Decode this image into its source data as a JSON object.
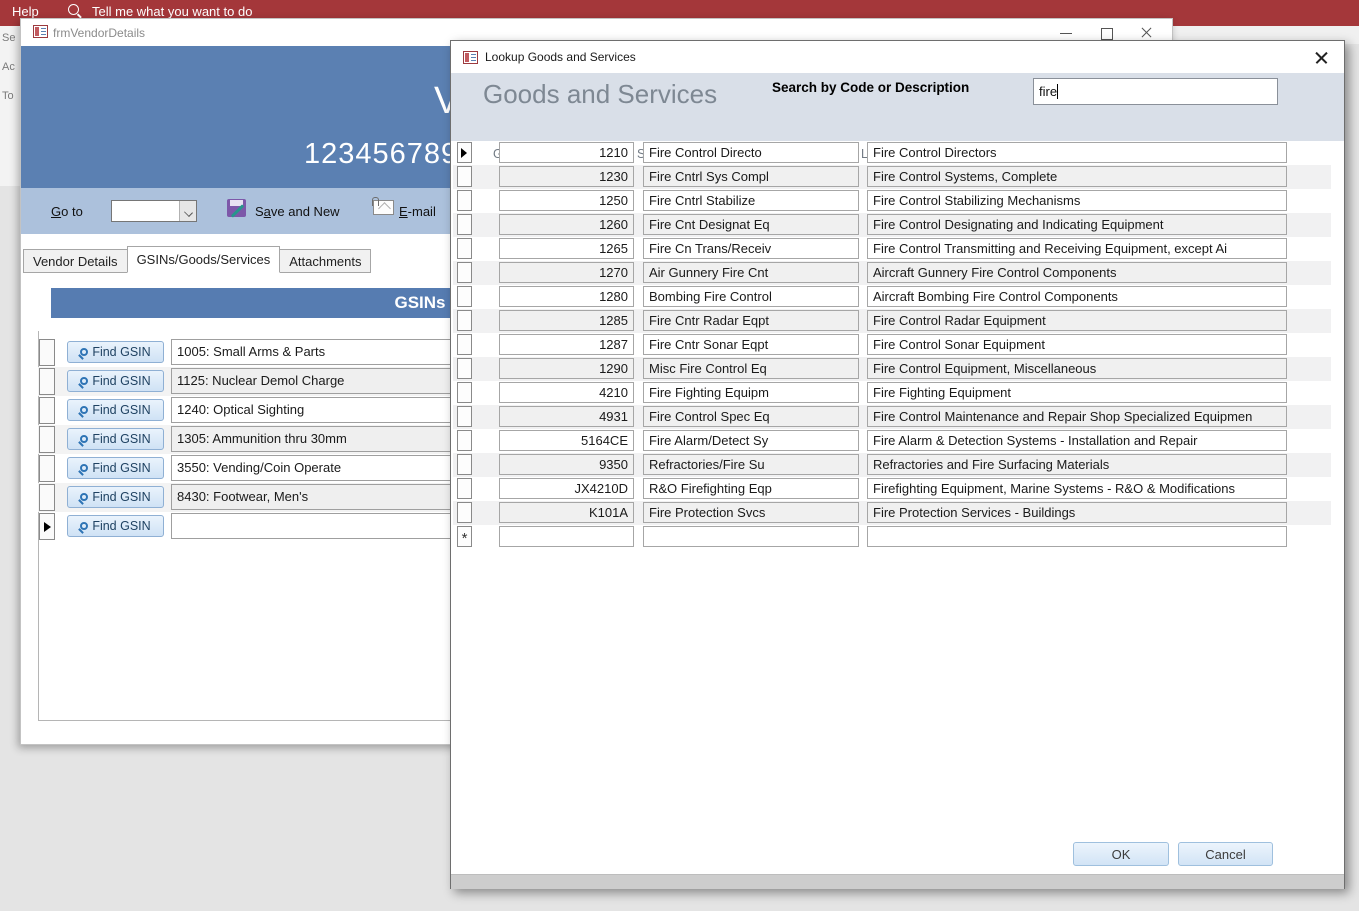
{
  "colors": {
    "ribbon_red": "#a4373a",
    "header_blue": "#5b80b2",
    "toolbar_blue": "#acc1dc",
    "section_blue": "#567cb1",
    "dialog_header": "#d9dfe8",
    "alt_row_gray": "#f1f1f2",
    "button_blue_border": "#9fc0de"
  },
  "ribbon": {
    "help_label": "Help",
    "tell_me_label": "Tell me what you want to do"
  },
  "left_panel": {
    "partial_labels": [
      "Se",
      "Ac",
      "To"
    ]
  },
  "vendor_window": {
    "title": "frmVendorDetails",
    "header": {
      "title_partial": "V",
      "vendor_number": "123456789 -"
    },
    "toolbar": {
      "goto": {
        "pre": "",
        "key": "G",
        "post": "o to"
      },
      "save": {
        "pre": "S",
        "key": "a",
        "post": "ve and New"
      },
      "email": {
        "pre": "",
        "key": "E",
        "post": "-mail"
      }
    },
    "tabs": [
      {
        "label": "Vendor Details",
        "active": false
      },
      {
        "label": "GSINs/Goods/Services",
        "active": true
      },
      {
        "label": "Attachments",
        "active": false
      }
    ],
    "section_bar_label": "GSINs |",
    "find_button_label": "Find GSIN",
    "gsin_rows": [
      {
        "value": "1005: Small Arms & Parts",
        "current": false
      },
      {
        "value": "1125: Nuclear Demol Charge",
        "current": false
      },
      {
        "value": "1240: Optical Sighting",
        "current": false
      },
      {
        "value": "1305: Ammunition thru 30mm",
        "current": false
      },
      {
        "value": "3550: Vending/Coin Operate",
        "current": false
      },
      {
        "value": "8430: Footwear, Men's",
        "current": false
      },
      {
        "value": "",
        "current": true
      }
    ]
  },
  "dialog": {
    "title": "Lookup Goods and Services",
    "heading": "Goods and Services",
    "search_label": "Search by Code or Description",
    "search_value": "fire",
    "columns": [
      "GSIN Code",
      "Short Description",
      "Long Description"
    ],
    "rows": [
      {
        "code": "1210",
        "short": "Fire Control Directo",
        "long": "Fire Control Directors",
        "current": true,
        "new_record": false
      },
      {
        "code": "1230",
        "short": "Fire Cntrl Sys Compl",
        "long": "Fire Control Systems, Complete",
        "current": false,
        "new_record": false
      },
      {
        "code": "1250",
        "short": "Fire Cntrl Stabilize",
        "long": "Fire Control Stabilizing Mechanisms",
        "current": false,
        "new_record": false
      },
      {
        "code": "1260",
        "short": "Fire Cnt Designat Eq",
        "long": "Fire Control Designating and Indicating Equipment",
        "current": false,
        "new_record": false
      },
      {
        "code": "1265",
        "short": "Fire Cn Trans/Receiv",
        "long": "Fire Control Transmitting and Receiving Equipment, except Ai",
        "current": false,
        "new_record": false
      },
      {
        "code": "1270",
        "short": "Air Gunnery Fire Cnt",
        "long": "Aircraft Gunnery Fire Control Components",
        "current": false,
        "new_record": false
      },
      {
        "code": "1280",
        "short": "Bombing Fire Control",
        "long": "Aircraft Bombing Fire Control Components",
        "current": false,
        "new_record": false
      },
      {
        "code": "1285",
        "short": "Fire Cntr Radar Eqpt",
        "long": "Fire Control Radar Equipment",
        "current": false,
        "new_record": false
      },
      {
        "code": "1287",
        "short": "Fire Cntr Sonar Eqpt",
        "long": "Fire Control Sonar Equipment",
        "current": false,
        "new_record": false
      },
      {
        "code": "1290",
        "short": "Misc Fire Control Eq",
        "long": "Fire Control Equipment, Miscellaneous",
        "current": false,
        "new_record": false
      },
      {
        "code": "4210",
        "short": "Fire Fighting Equipm",
        "long": "Fire Fighting Equipment",
        "current": false,
        "new_record": false
      },
      {
        "code": "4931",
        "short": "Fire Control Spec Eq",
        "long": "Fire Control Maintenance and Repair Shop Specialized Equipmen",
        "current": false,
        "new_record": false
      },
      {
        "code": "5164CE",
        "short": "Fire Alarm/Detect Sy",
        "long": "Fire Alarm & Detection Systems - Installation and Repair",
        "current": false,
        "new_record": false
      },
      {
        "code": "9350",
        "short": "Refractories/Fire Su",
        "long": "Refractories and Fire Surfacing Materials",
        "current": false,
        "new_record": false
      },
      {
        "code": "JX4210D",
        "short": "R&O Firefighting Eqp",
        "long": "Firefighting Equipment, Marine Systems - R&O & Modifications",
        "current": false,
        "new_record": false
      },
      {
        "code": "K101A",
        "short": "Fire Protection Svcs",
        "long": "Fire Protection Services - Buildings",
        "current": false,
        "new_record": false
      },
      {
        "code": "",
        "short": "",
        "long": "",
        "current": false,
        "new_record": true
      }
    ],
    "ok_label": "OK",
    "cancel_label": "Cancel",
    "new_record_icon": "*"
  }
}
